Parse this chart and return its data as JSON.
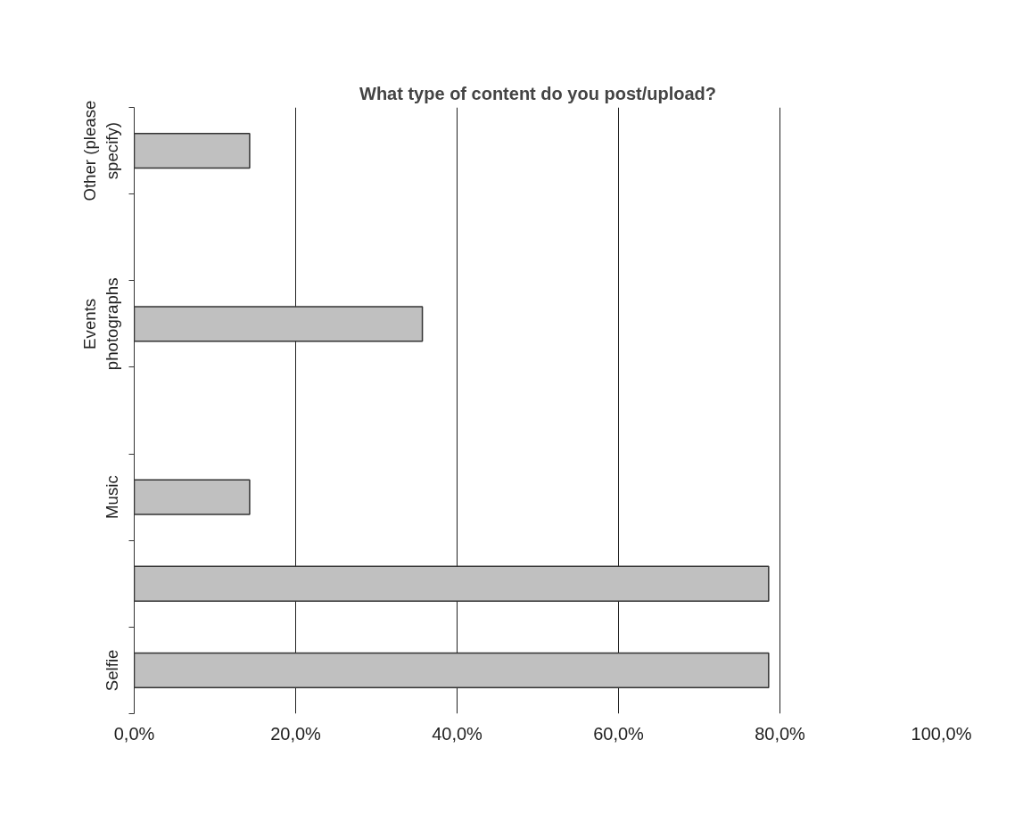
{
  "chart_data": {
    "type": "bar",
    "orientation": "horizontal",
    "title": "What type of content do you post/upload?",
    "categories": [
      "Other (please specify)",
      null,
      "Events photographs",
      null,
      "Music",
      null,
      "Selfie"
    ],
    "values": [
      14.3,
      null,
      35.7,
      null,
      14.3,
      78.6,
      78.6
    ],
    "color": "#c0c0c0",
    "xlim": [
      0,
      100
    ],
    "xticks": [
      {
        "value": 0,
        "label": "0,0%"
      },
      {
        "value": 20,
        "label": "20,0%"
      },
      {
        "value": 40,
        "label": "40,0%"
      },
      {
        "value": 60,
        "label": "60,0%"
      },
      {
        "value": 80,
        "label": "80,0%"
      },
      {
        "value": 100,
        "label": "100,0%"
      }
    ],
    "grid": "x"
  }
}
